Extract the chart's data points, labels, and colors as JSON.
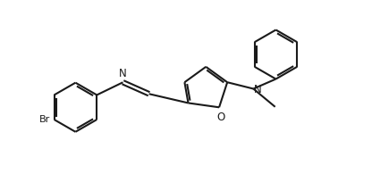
{
  "bg_color": "#ffffff",
  "line_color": "#1a1a1a",
  "line_width": 1.5,
  "figsize": [
    4.16,
    2.04
  ],
  "dpi": 100,
  "xlim": [
    0,
    10
  ],
  "ylim": [
    0,
    5
  ]
}
